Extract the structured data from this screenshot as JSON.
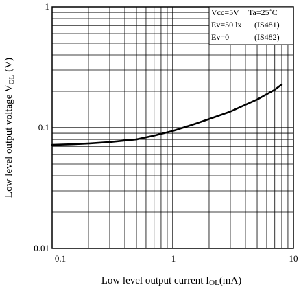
{
  "chart_data": {
    "type": "line",
    "title": "",
    "xlabel": "Low level output current I",
    "xlabel_sub": "OL",
    "xlabel_unit": "(mA)",
    "ylabel": "Low level output voltage V",
    "ylabel_sub": "OL",
    "ylabel_unit": "(V)",
    "xscale": "log",
    "yscale": "log",
    "xlim": [
      0.1,
      10
    ],
    "ylim": [
      0.01,
      1
    ],
    "grid": true,
    "x_ticks": [
      "0.1",
      "1",
      "10"
    ],
    "y_ticks": [
      "0.01",
      "0.1",
      "1"
    ],
    "legend_position": "top-right",
    "legend": [
      [
        "Vcc=5V",
        "Ta=25˚C"
      ],
      [
        "Ev=50 lx",
        "(IS481)"
      ],
      [
        "Ev=0",
        "(IS482)"
      ]
    ],
    "series": [
      {
        "color": "#000000",
        "x": [
          0.1,
          0.15,
          0.2,
          0.3,
          0.5,
          0.7,
          1,
          1.5,
          2,
          3,
          5,
          7,
          8
        ],
        "y": [
          0.072,
          0.073,
          0.074,
          0.076,
          0.08,
          0.086,
          0.094,
          0.107,
          0.118,
          0.136,
          0.171,
          0.206,
          0.228
        ]
      }
    ]
  }
}
